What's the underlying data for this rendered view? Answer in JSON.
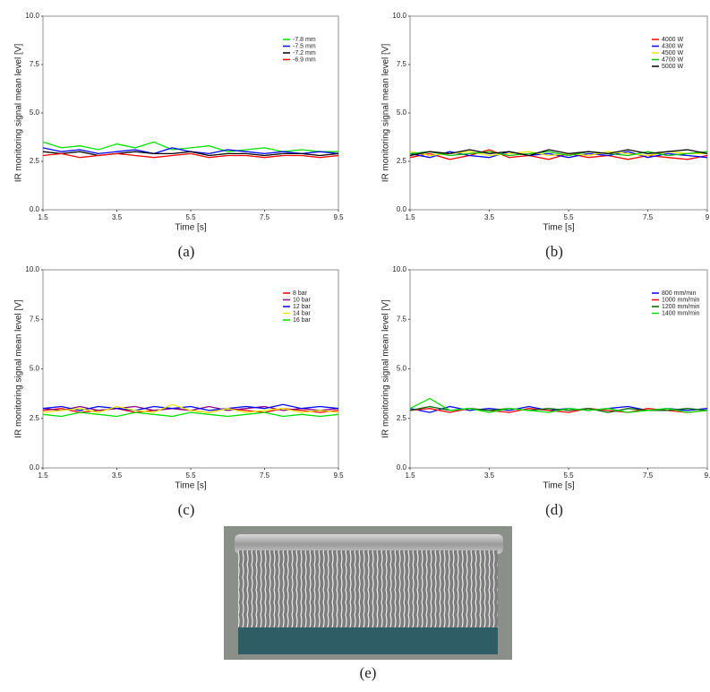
{
  "chart_data": [
    {
      "type": "line",
      "label": "(a)",
      "xlabel": "Time [s]",
      "ylabel": "IR monitoring signal mean level [V]",
      "xlim": [
        1.5,
        9.5
      ],
      "xticks": [
        1.5,
        3.5,
        5.5,
        7.5,
        9.5
      ],
      "ylim": [
        0,
        10
      ],
      "yticks": [
        {
          "value": 0,
          "label": "0.0"
        },
        {
          "value": 2.5,
          "label": "2.5"
        },
        {
          "value": 5,
          "label": "5.0"
        },
        {
          "value": 7.5,
          "label": "7.5"
        },
        {
          "value": 10,
          "label": "10.0"
        }
      ],
      "legend": "upper right",
      "x": [
        1.5,
        2,
        2.5,
        3,
        3.5,
        4,
        4.5,
        5,
        5.5,
        6,
        6.5,
        7,
        7.5,
        8,
        8.5,
        9,
        9.5
      ],
      "series": [
        {
          "name": "-7.8 mm",
          "color": "#00e000",
          "values": [
            3.5,
            3.2,
            3.3,
            3.1,
            3.4,
            3.2,
            3.5,
            3.1,
            3.2,
            3.3,
            3.0,
            3.1,
            3.2,
            3.0,
            3.1,
            3.0,
            3.0
          ]
        },
        {
          "name": "-7.5 mm",
          "color": "#0000ff",
          "values": [
            3.2,
            3.0,
            3.1,
            2.9,
            3.0,
            3.1,
            2.9,
            3.2,
            3.0,
            2.9,
            3.1,
            3.0,
            2.9,
            3.0,
            2.9,
            3.0,
            2.9
          ]
        },
        {
          "name": "-7.2 mm",
          "color": "#000000",
          "values": [
            3.0,
            2.9,
            3.0,
            2.8,
            2.9,
            3.0,
            2.9,
            2.9,
            3.0,
            2.8,
            2.9,
            2.9,
            2.8,
            2.9,
            2.9,
            2.8,
            2.9
          ]
        },
        {
          "name": "-6.9 mm",
          "color": "#ff0000",
          "values": [
            2.8,
            2.9,
            2.7,
            2.8,
            2.9,
            2.8,
            2.7,
            2.8,
            2.9,
            2.7,
            2.8,
            2.8,
            2.7,
            2.8,
            2.8,
            2.7,
            2.8
          ]
        }
      ]
    },
    {
      "type": "line",
      "label": "(b)",
      "xlabel": "Time [s]",
      "ylabel": "IR monitoring signal mean level [V]",
      "xlim": [
        1.5,
        9
      ],
      "xticks": [
        1.5,
        3.5,
        5.5,
        7.5,
        9
      ],
      "ylim": [
        0,
        10
      ],
      "yticks": [
        {
          "value": 0,
          "label": "0.0"
        },
        {
          "value": 2.5,
          "label": "2.5"
        },
        {
          "value": 5,
          "label": "5.0"
        },
        {
          "value": 7.5,
          "label": "7.5"
        },
        {
          "value": 10,
          "label": "10.0"
        }
      ],
      "legend": "upper right",
      "x": [
        1.5,
        2,
        2.5,
        3,
        3.5,
        4,
        4.5,
        5,
        5.5,
        6,
        6.5,
        7,
        7.5,
        8,
        8.5,
        9
      ],
      "series": [
        {
          "name": "4000 W",
          "color": "#ff0000",
          "values": [
            2.7,
            2.9,
            2.6,
            2.8,
            3.1,
            2.7,
            2.8,
            2.6,
            2.9,
            2.7,
            2.8,
            2.6,
            2.8,
            2.7,
            2.6,
            2.8
          ]
        },
        {
          "name": "4300 W",
          "color": "#0000ff",
          "values": [
            2.9,
            2.7,
            3.0,
            2.8,
            2.7,
            3.0,
            2.8,
            2.9,
            2.7,
            2.9,
            2.8,
            3.0,
            2.7,
            2.9,
            2.8,
            2.7
          ]
        },
        {
          "name": "4500 W",
          "color": "#e8e800",
          "values": [
            3.0,
            2.8,
            2.9,
            3.0,
            2.8,
            2.9,
            3.0,
            2.8,
            2.9,
            2.8,
            3.0,
            2.9,
            2.8,
            3.0,
            2.9,
            2.9
          ]
        },
        {
          "name": "4700 W",
          "color": "#00c000",
          "values": [
            2.9,
            3.0,
            2.8,
            2.9,
            3.0,
            2.8,
            2.9,
            3.0,
            2.8,
            3.0,
            2.9,
            2.8,
            3.0,
            2.8,
            2.9,
            3.0
          ]
        },
        {
          "name": "5000 W",
          "color": "#000000",
          "values": [
            2.8,
            3.0,
            2.9,
            3.1,
            2.9,
            3.0,
            2.8,
            3.1,
            2.9,
            3.0,
            2.9,
            3.1,
            2.9,
            3.0,
            3.1,
            2.9
          ]
        }
      ]
    },
    {
      "type": "line",
      "label": "(c)",
      "xlabel": "Time [s]",
      "ylabel": "IR monitoring signal mean level [V]",
      "xlim": [
        1.5,
        9.5
      ],
      "xticks": [
        1.5,
        3.5,
        5.5,
        7.5,
        9.5
      ],
      "ylim": [
        0,
        10
      ],
      "yticks": [
        {
          "value": 0,
          "label": "0.0"
        },
        {
          "value": 2.5,
          "label": "2.5"
        },
        {
          "value": 5,
          "label": "5.0"
        },
        {
          "value": 7.5,
          "label": "7.5"
        },
        {
          "value": 10,
          "label": "10.0"
        }
      ],
      "legend": "upper right",
      "x": [
        1.5,
        2,
        2.5,
        3,
        3.5,
        4,
        4.5,
        5,
        5.5,
        6,
        6.5,
        7,
        7.5,
        8,
        8.5,
        9,
        9.5
      ],
      "series": [
        {
          "name": "8 bar",
          "color": "#ff0000",
          "values": [
            2.9,
            3.0,
            2.8,
            2.9,
            3.0,
            2.8,
            2.9,
            3.0,
            2.9,
            2.8,
            3.0,
            2.9,
            2.8,
            3.0,
            2.9,
            2.8,
            2.9
          ]
        },
        {
          "name": "10 bar",
          "color": "#800080",
          "values": [
            3.0,
            2.9,
            3.1,
            2.9,
            3.0,
            3.1,
            2.9,
            3.0,
            2.9,
            3.1,
            2.9,
            3.0,
            3.1,
            2.9,
            3.0,
            2.9,
            3.0
          ]
        },
        {
          "name": "12 bar",
          "color": "#0000ff",
          "values": [
            3.0,
            3.1,
            2.9,
            3.1,
            3.0,
            2.9,
            3.1,
            3.0,
            3.1,
            2.9,
            3.0,
            3.1,
            3.0,
            3.2,
            3.0,
            3.1,
            3.0
          ]
        },
        {
          "name": "14 bar",
          "color": "#e8e800",
          "values": [
            2.8,
            2.9,
            3.0,
            2.8,
            3.1,
            2.9,
            2.8,
            3.2,
            2.9,
            2.8,
            3.0,
            2.8,
            2.9,
            3.0,
            2.8,
            2.9,
            2.8
          ]
        },
        {
          "name": "16 bar",
          "color": "#00e000",
          "values": [
            2.7,
            2.6,
            2.8,
            2.7,
            2.6,
            2.8,
            2.7,
            2.6,
            2.8,
            2.7,
            2.6,
            2.7,
            2.8,
            2.6,
            2.7,
            2.6,
            2.7
          ]
        }
      ]
    },
    {
      "type": "line",
      "label": "(d)",
      "xlabel": "Time [s]",
      "ylabel": "IR monitoring signal mean level [V]",
      "xlim": [
        1.5,
        9
      ],
      "xticks": [
        1.5,
        3.5,
        5.5,
        7.5,
        {
          "value": 9,
          "label": "9."
        }
      ],
      "ylim": [
        0,
        10
      ],
      "yticks": [
        {
          "value": 0,
          "label": "0.0"
        },
        {
          "value": 2.5,
          "label": "2.5"
        },
        {
          "value": 5,
          "label": "5.0"
        },
        {
          "value": 7.5,
          "label": "7.5"
        },
        {
          "value": 10,
          "label": "10.0"
        }
      ],
      "legend": "upper right",
      "x": [
        1.5,
        2,
        2.5,
        3,
        3.5,
        4,
        4.5,
        5,
        5.5,
        6,
        6.5,
        7,
        7.5,
        8,
        8.5,
        9
      ],
      "series": [
        {
          "name": "800 mm/min",
          "color": "#0000ff",
          "values": [
            3.0,
            2.8,
            3.1,
            2.9,
            3.0,
            2.9,
            3.1,
            2.9,
            3.0,
            2.9,
            3.0,
            3.1,
            2.9,
            3.0,
            2.9,
            3.0
          ]
        },
        {
          "name": "1000 mm/min",
          "color": "#ff0000",
          "values": [
            2.9,
            3.0,
            2.8,
            3.0,
            2.9,
            2.8,
            3.0,
            2.9,
            2.8,
            3.0,
            2.9,
            2.8,
            3.0,
            2.9,
            2.8,
            2.9
          ]
        },
        {
          "name": "1200 mm/min",
          "color": "#006400",
          "values": [
            2.9,
            3.1,
            2.9,
            3.0,
            2.9,
            3.0,
            2.9,
            3.0,
            2.9,
            3.0,
            2.8,
            3.0,
            2.9,
            2.9,
            3.0,
            2.9
          ]
        },
        {
          "name": "1400 mm/min",
          "color": "#00e000",
          "values": [
            3.0,
            3.5,
            2.9,
            3.0,
            2.8,
            3.0,
            2.9,
            2.8,
            3.0,
            2.9,
            3.0,
            2.8,
            2.9,
            3.0,
            2.8,
            2.9
          ]
        }
      ]
    }
  ],
  "photo": {
    "label": "(e)"
  }
}
